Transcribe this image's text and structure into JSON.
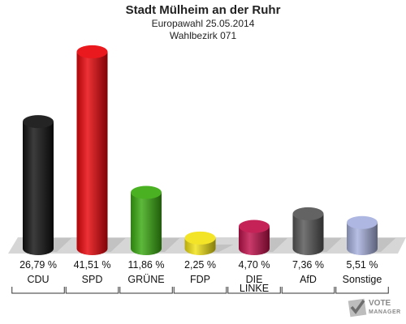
{
  "chart_data": {
    "type": "bar",
    "title": "Stadt Mülheim an der Ruhr",
    "subtitle_lines": [
      "Europawahl 25.05.2014",
      "Wahlbezirk 071"
    ],
    "categories": [
      "CDU",
      "SPD",
      "GRÜNE",
      "FDP",
      "DIE LINKE",
      "AfD",
      "Sonstige"
    ],
    "category_lines": [
      [
        "CDU"
      ],
      [
        "SPD"
      ],
      [
        "GRÜNE"
      ],
      [
        "FDP"
      ],
      [
        "DIE",
        "LINKE"
      ],
      [
        "AfD"
      ],
      [
        "Sonstige"
      ]
    ],
    "values": [
      26.79,
      41.51,
      11.86,
      2.25,
      4.7,
      7.36,
      5.51
    ],
    "value_labels": [
      "26,79 %",
      "41,51 %",
      "11,86 %",
      "2,25 %",
      "4,70 %",
      "7,36 %",
      "5,51 %"
    ],
    "colors": [
      "#111111",
      "#e8050a",
      "#3aaa10",
      "#f2e214",
      "#c0104a",
      "#555555",
      "#a7b1de"
    ],
    "ylim": [
      0,
      45
    ],
    "grid": false,
    "legend": "none"
  },
  "logo": {
    "line1": "VOTE",
    "line2": "MANAGER"
  }
}
